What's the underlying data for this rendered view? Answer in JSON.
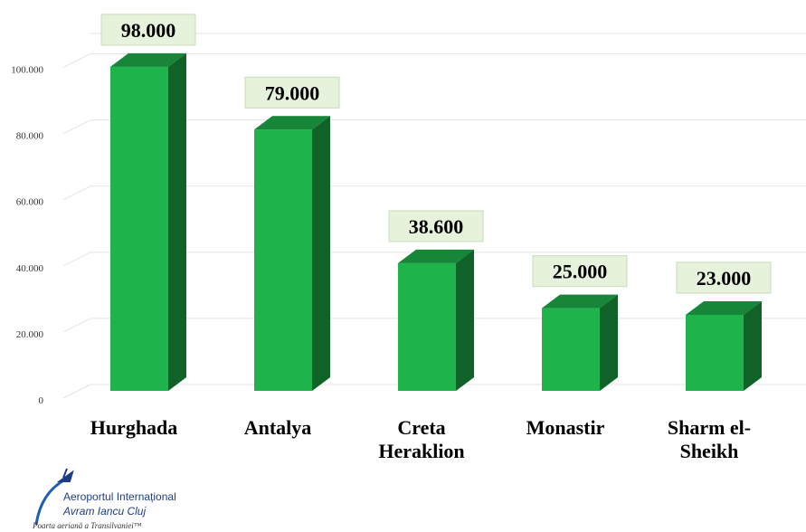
{
  "chart_data": {
    "type": "bar3d",
    "categories": [
      "Hurghada",
      "Antalya",
      "Creta Heraklion",
      "Monastir",
      "Sharm el-Sheikh"
    ],
    "values": [
      98000,
      79000,
      38600,
      25000,
      23000
    ],
    "value_labels": [
      "98.000",
      "79.000",
      "38.600",
      "25.000",
      "23.000"
    ],
    "color": "#1fb34b",
    "ylim": [
      0,
      110000
    ],
    "yticks": [
      0,
      {
        "value": 20000,
        "label": "20.000"
      },
      {
        "value": 40000,
        "label": "40.000"
      },
      {
        "value": 60000,
        "label": "60.000"
      },
      {
        "value": 80000,
        "label": "80.000"
      },
      {
        "value": 100000,
        "label": "100.000"
      }
    ],
    "grid": true
  },
  "logo": {
    "name": "Aeroportul Internațional",
    "city": "Avram Iancu Cluj",
    "slogan": "Poarta aeriană a Transilvaniei™"
  }
}
